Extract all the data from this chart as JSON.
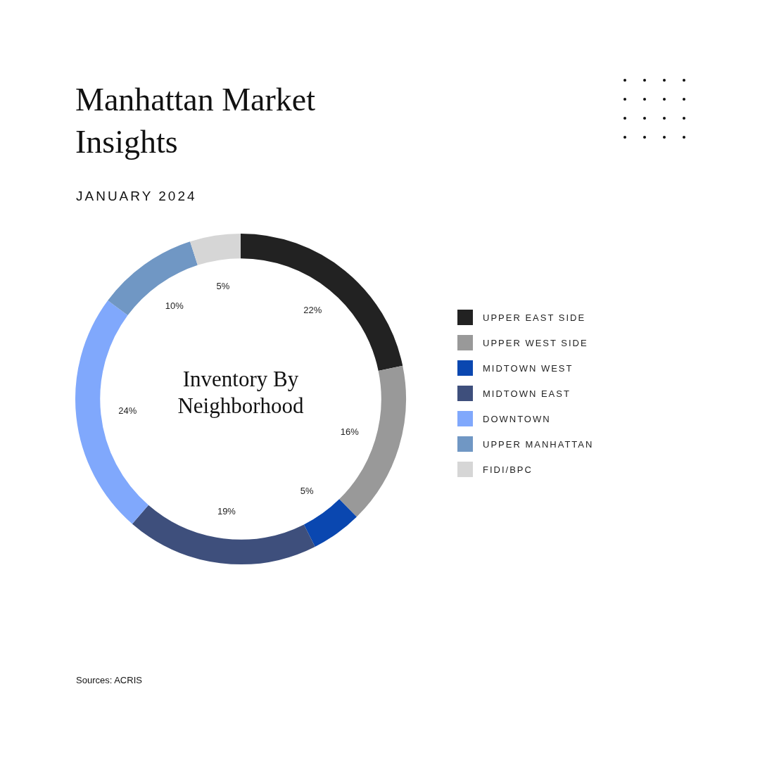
{
  "chart_data": {
    "type": "donut",
    "title": "Manhattan Market Insights",
    "subtitle": "JANUARY 2024",
    "annotations": [
      "Inventory By Neighborhood",
      "Sources: ACRIS"
    ],
    "categories": [
      "UPPER EAST SIDE",
      "UPPER WEST SIDE",
      "MIDTOWN WEST",
      "MIDTOWN EAST",
      "DOWNTOWN",
      "UPPER MANHATTAN",
      "FIDI/BPC"
    ],
    "values": [
      22,
      16,
      5,
      19,
      24,
      10,
      5
    ],
    "colors": [
      "#222222",
      "#999999",
      "#0a47b0",
      "#3e4f7c",
      "#80a8fc",
      "#7097c4",
      "#d6d6d6"
    ],
    "value_labels": [
      "22%",
      "16%",
      "5%",
      "19%",
      "24%",
      "10%",
      "5%"
    ],
    "legend": "right"
  }
}
